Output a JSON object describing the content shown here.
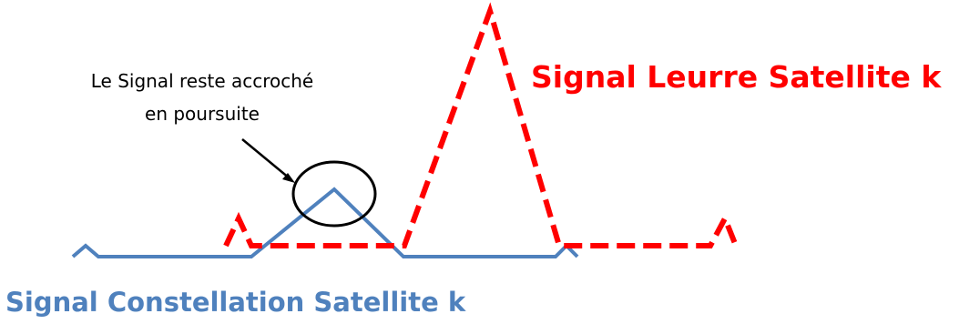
{
  "annotation": {
    "line1": "Le Signal reste accroché",
    "line2": "en poursuite"
  },
  "spoof_signal": {
    "label": "Signal Leurre Satellite k",
    "color": "#ff0000"
  },
  "constellation_signal": {
    "label": "Signal Constellation Satellite k",
    "color": "#4f81bd"
  },
  "annotation_style": {
    "text_color": "#000000",
    "circle_color": "#000000"
  }
}
